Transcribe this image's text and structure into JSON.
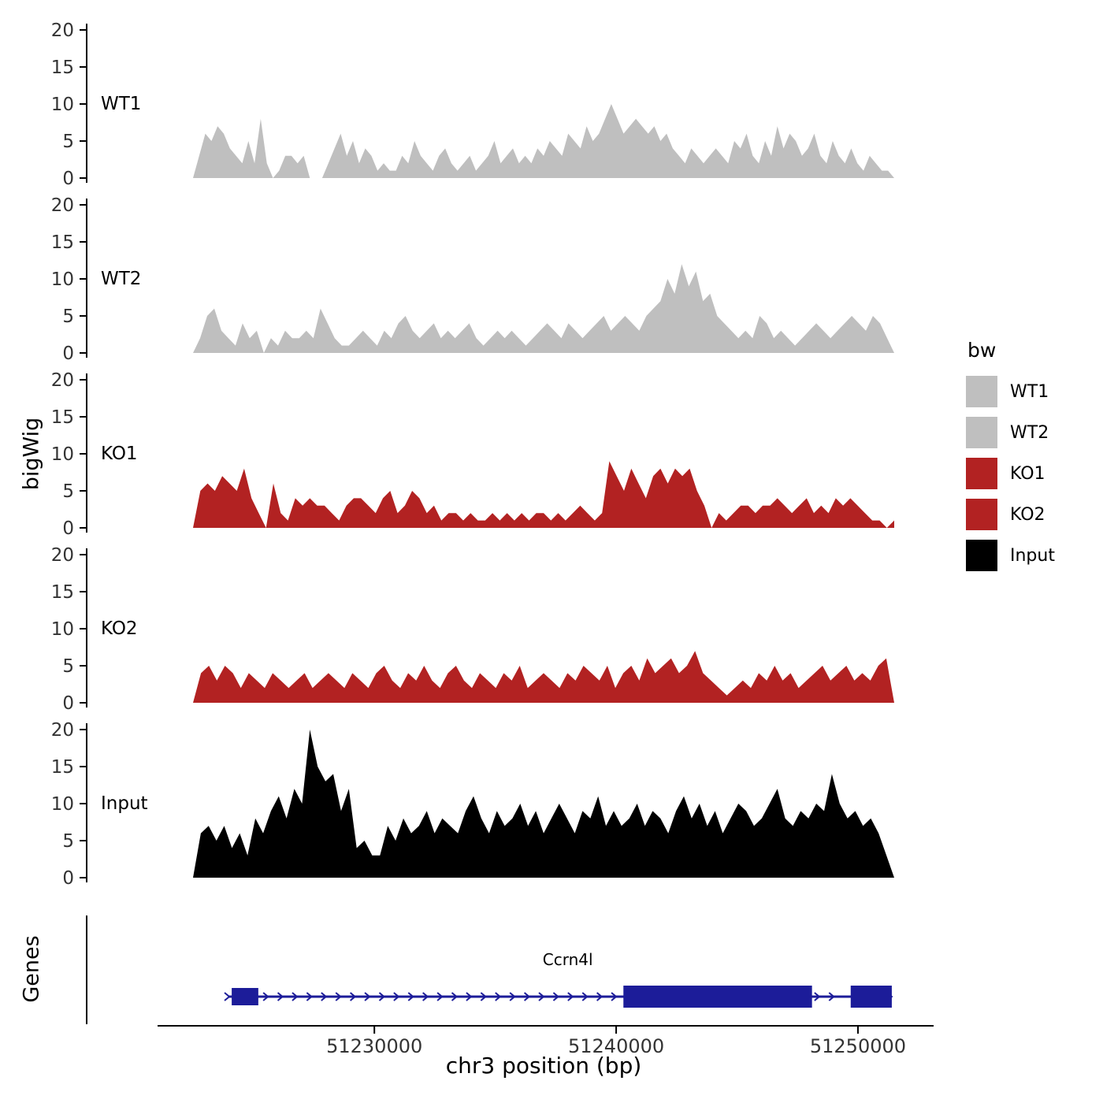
{
  "axes": {
    "x_title": "chr3 position (bp)",
    "y_axis_title": "bigWig",
    "genes_axis_title": "Genes",
    "x_tick_labels": [
      "51230000",
      "51240000",
      "51250000"
    ],
    "x_tick_positions": [
      51230000,
      51240000,
      51250000
    ],
    "y_ticks": [
      0,
      5,
      10,
      15,
      20
    ]
  },
  "legend": {
    "title": "bw",
    "entries": [
      {
        "label": "WT1",
        "color": "#bfbfbf"
      },
      {
        "label": "WT2",
        "color": "#bfbfbf"
      },
      {
        "label": "KO1",
        "color": "#b22222"
      },
      {
        "label": "KO2",
        "color": "#b22222"
      },
      {
        "label": "Input",
        "color": "#000000"
      }
    ]
  },
  "chart_data": {
    "type": "area",
    "title": "",
    "xlabel": "chr3 position (bp)",
    "ylabel": "bigWig",
    "x_range": [
      51222500,
      51251500
    ],
    "ylim": [
      0,
      20
    ],
    "tracks": [
      {
        "name": "WT1",
        "color": "#bfbfbf",
        "values": [
          0,
          3,
          6,
          5,
          7,
          6,
          4,
          3,
          2,
          5,
          2,
          8,
          2,
          0,
          1,
          3,
          3,
          2,
          3,
          0,
          0,
          0,
          2,
          4,
          6,
          3,
          5,
          2,
          4,
          3,
          1,
          2,
          1,
          1,
          3,
          2,
          5,
          3,
          2,
          1,
          3,
          4,
          2,
          1,
          2,
          3,
          1,
          2,
          3,
          5,
          2,
          3,
          4,
          2,
          3,
          2,
          4,
          3,
          5,
          4,
          3,
          6,
          5,
          4,
          7,
          5,
          6,
          8,
          10,
          8,
          6,
          7,
          8,
          7,
          6,
          7,
          5,
          6,
          4,
          3,
          2,
          4,
          3,
          2,
          3,
          4,
          3,
          2,
          5,
          4,
          6,
          3,
          2,
          5,
          3,
          7,
          4,
          6,
          5,
          3,
          4,
          6,
          3,
          2,
          5,
          3,
          2,
          4,
          2,
          1,
          3,
          2,
          1,
          1,
          0
        ]
      },
      {
        "name": "WT2",
        "color": "#bfbfbf",
        "values": [
          0,
          2,
          5,
          6,
          3,
          2,
          1,
          4,
          2,
          3,
          0,
          2,
          1,
          3,
          2,
          2,
          3,
          2,
          6,
          4,
          2,
          1,
          1,
          2,
          3,
          2,
          1,
          3,
          2,
          4,
          5,
          3,
          2,
          3,
          4,
          2,
          3,
          2,
          3,
          4,
          2,
          1,
          2,
          3,
          2,
          3,
          2,
          1,
          2,
          3,
          4,
          3,
          2,
          4,
          3,
          2,
          3,
          4,
          5,
          3,
          4,
          5,
          4,
          3,
          5,
          6,
          7,
          10,
          8,
          12,
          9,
          11,
          7,
          8,
          5,
          4,
          3,
          2,
          3,
          2,
          5,
          4,
          2,
          3,
          2,
          1,
          2,
          3,
          4,
          3,
          2,
          3,
          4,
          5,
          4,
          3,
          5,
          4,
          2,
          0
        ]
      },
      {
        "name": "KO1",
        "color": "#b22222",
        "values": [
          0,
          5,
          6,
          5,
          7,
          6,
          5,
          8,
          4,
          2,
          0,
          6,
          2,
          1,
          4,
          3,
          4,
          3,
          3,
          2,
          1,
          3,
          4,
          4,
          3,
          2,
          4,
          5,
          2,
          3,
          5,
          4,
          2,
          3,
          1,
          2,
          2,
          1,
          2,
          1,
          1,
          2,
          1,
          2,
          1,
          2,
          1,
          2,
          2,
          1,
          2,
          1,
          2,
          3,
          2,
          1,
          2,
          9,
          7,
          5,
          8,
          6,
          4,
          7,
          8,
          6,
          8,
          7,
          8,
          5,
          3,
          0,
          2,
          1,
          2,
          3,
          3,
          2,
          3,
          3,
          4,
          3,
          2,
          3,
          4,
          2,
          3,
          2,
          4,
          3,
          4,
          3,
          2,
          1,
          1,
          0,
          1
        ]
      },
      {
        "name": "KO2",
        "color": "#b22222",
        "values": [
          0,
          4,
          5,
          3,
          5,
          4,
          2,
          4,
          3,
          2,
          4,
          3,
          2,
          3,
          4,
          2,
          3,
          4,
          3,
          2,
          4,
          3,
          2,
          4,
          5,
          3,
          2,
          4,
          3,
          5,
          3,
          2,
          4,
          5,
          3,
          2,
          4,
          3,
          2,
          4,
          3,
          5,
          2,
          3,
          4,
          3,
          2,
          4,
          3,
          5,
          4,
          3,
          5,
          2,
          4,
          5,
          3,
          6,
          4,
          5,
          6,
          4,
          5,
          7,
          4,
          3,
          2,
          1,
          2,
          3,
          2,
          4,
          3,
          5,
          3,
          4,
          2,
          3,
          4,
          5,
          3,
          4,
          5,
          3,
          4,
          3,
          5,
          6,
          0
        ]
      },
      {
        "name": "Input",
        "color": "#000000",
        "values": [
          0,
          6,
          7,
          5,
          7,
          4,
          6,
          3,
          8,
          6,
          9,
          11,
          8,
          12,
          10,
          20,
          15,
          13,
          14,
          9,
          12,
          4,
          5,
          3,
          3,
          7,
          5,
          8,
          6,
          7,
          9,
          6,
          8,
          7,
          6,
          9,
          11,
          8,
          6,
          9,
          7,
          8,
          10,
          7,
          9,
          6,
          8,
          10,
          8,
          6,
          9,
          8,
          11,
          7,
          9,
          7,
          8,
          10,
          7,
          9,
          8,
          6,
          9,
          11,
          8,
          10,
          7,
          9,
          6,
          8,
          10,
          9,
          7,
          8,
          10,
          12,
          8,
          7,
          9,
          8,
          10,
          9,
          14,
          10,
          8,
          9,
          7,
          8,
          6,
          3,
          0
        ]
      }
    ],
    "gene": {
      "name": "Ccrn4l",
      "color": "#1c1c99",
      "label_pos": 51238000,
      "line": [
        51224000,
        51251400
      ],
      "exons": [
        {
          "start": 51224100,
          "end": 51225200,
          "size": "small"
        },
        {
          "start": 51240300,
          "end": 51248100,
          "size": "large"
        },
        {
          "start": 51249700,
          "end": 51251400,
          "size": "large"
        }
      ],
      "arrow_regions": [
        [
          51225600,
          51240100
        ],
        [
          51248400,
          51249600
        ]
      ]
    }
  }
}
